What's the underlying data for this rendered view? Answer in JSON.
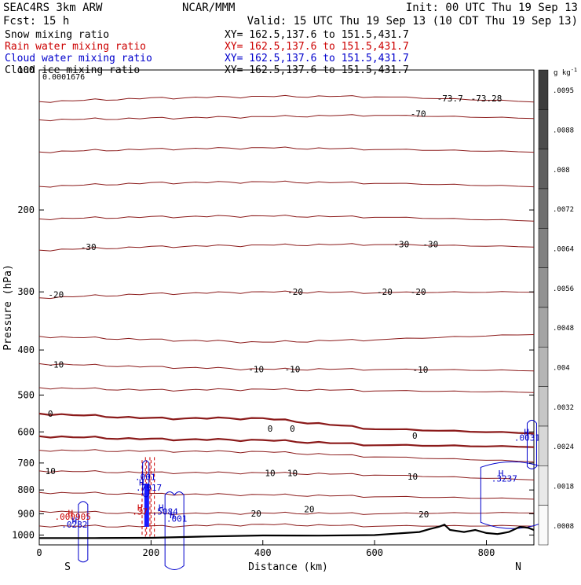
{
  "header": {
    "model": "SEAC4RS  3km ARW",
    "org": "NCAR/MMM",
    "init": "Init: 00 UTC Thu 19 Sep 13",
    "fcst": "Fcst:   15 h",
    "valid": "Valid: 15 UTC Thu 19 Sep 13 (10 CDT Thu 19 Sep 13)",
    "fields": [
      {
        "label": "Snow mixing ratio",
        "xy": "XY= 162.5,137.6 to 151.5,431.7",
        "color": "#000000"
      },
      {
        "label": "Rain water mixing ratio",
        "xy": "XY= 162.5,137.6 to 151.5,431.7",
        "color": "#cc0000"
      },
      {
        "label": "Cloud water mixing ratio",
        "xy": "XY= 162.5,137.6 to 151.5,431.7",
        "color": "#0000cc"
      },
      {
        "label": "Cloud ice mixing ratio",
        "xy": "XY= 162.5,137.6 to 151.5,431.7",
        "color": "#000000"
      }
    ],
    "snow_max_value": "0.0001676"
  },
  "colorbar": {
    "unit": "g kg",
    "unit_exp": "-1",
    "labels": [
      ".0095",
      ".0088",
      ".008",
      ".0072",
      ".0064",
      ".0056",
      ".0048",
      ".004",
      ".0032",
      ".0024",
      ".0018",
      ".0008"
    ]
  },
  "chart_data": {
    "type": "cross-section",
    "xlabel": "Distance (km)",
    "ylabel": "Pressure (hPa)",
    "xlim": [
      0,
      885
    ],
    "ylim": [
      1050,
      100
    ],
    "y_log": true,
    "x_ticks": [
      0,
      200,
      400,
      600,
      800
    ],
    "y_ticks": [
      100,
      200,
      300,
      400,
      500,
      600,
      700,
      800,
      900,
      1000
    ],
    "x_end_labels": {
      "left": "S",
      "right": "N"
    },
    "temperature_contours": [
      {
        "value": -74,
        "points": [
          [
            0,
            117
          ],
          [
            200,
            115
          ],
          [
            400,
            114
          ],
          [
            600,
            114
          ],
          [
            885,
            117
          ]
        ]
      },
      {
        "value": -70,
        "points": [
          [
            0,
            128
          ],
          [
            200,
            127
          ],
          [
            400,
            126
          ],
          [
            600,
            125
          ],
          [
            885,
            127
          ]
        ]
      },
      {
        "value": -60,
        "points": [
          [
            0,
            150
          ],
          [
            200,
            148
          ],
          [
            400,
            147
          ],
          [
            600,
            148
          ],
          [
            885,
            150
          ]
        ]
      },
      {
        "value": -50,
        "points": [
          [
            0,
            178
          ],
          [
            200,
            175
          ],
          [
            400,
            174
          ],
          [
            600,
            175
          ],
          [
            885,
            178
          ]
        ]
      },
      {
        "value": -40,
        "points": [
          [
            0,
            209
          ],
          [
            200,
            207
          ],
          [
            400,
            206
          ],
          [
            600,
            207
          ],
          [
            885,
            211
          ]
        ]
      },
      {
        "value": -30,
        "points": [
          [
            0,
            244
          ],
          [
            200,
            240
          ],
          [
            400,
            238
          ],
          [
            600,
            237
          ],
          [
            885,
            240
          ]
        ]
      },
      {
        "value": -20,
        "points": [
          [
            0,
            309
          ],
          [
            200,
            303
          ],
          [
            400,
            300
          ],
          [
            600,
            301
          ],
          [
            885,
            300
          ]
        ]
      },
      {
        "value": -10,
        "points": [
          [
            0,
            374
          ],
          [
            200,
            380
          ],
          [
            400,
            385
          ],
          [
            600,
            380
          ],
          [
            885,
            370
          ]
        ]
      },
      {
        "value": -10,
        "points": [
          [
            0,
            428
          ],
          [
            200,
            435
          ],
          [
            400,
            440
          ],
          [
            600,
            440
          ],
          [
            885,
            443
          ]
        ]
      },
      {
        "value": -10,
        "points": [
          [
            0,
            482
          ],
          [
            200,
            488
          ],
          [
            400,
            486
          ],
          [
            600,
            489
          ],
          [
            885,
            493
          ]
        ]
      },
      {
        "value": 0,
        "points": [
          [
            0,
            548
          ],
          [
            200,
            561
          ],
          [
            400,
            561
          ],
          [
            600,
            591
          ],
          [
            885,
            604
          ]
        ]
      },
      {
        "value": 0,
        "points": [
          [
            0,
            613
          ],
          [
            200,
            622
          ],
          [
            400,
            625
          ],
          [
            600,
            640
          ],
          [
            885,
            646
          ]
        ]
      },
      {
        "value": 10,
        "points": [
          [
            0,
            657
          ],
          [
            200,
            660
          ],
          [
            400,
            662
          ],
          [
            600,
            678
          ],
          [
            885,
            695
          ]
        ]
      },
      {
        "value": 10,
        "points": [
          [
            0,
            728
          ],
          [
            200,
            734
          ],
          [
            400,
            735
          ],
          [
            600,
            742
          ],
          [
            885,
            760
          ]
        ]
      },
      {
        "value": 20,
        "points": [
          [
            0,
            810
          ],
          [
            200,
            816
          ],
          [
            400,
            819
          ],
          [
            600,
            826
          ],
          [
            885,
            836
          ]
        ]
      },
      {
        "value": 20,
        "points": [
          [
            0,
            888
          ],
          [
            200,
            899
          ],
          [
            400,
            897
          ],
          [
            600,
            899
          ],
          [
            885,
            895
          ]
        ]
      },
      {
        "value": 30,
        "points": [
          [
            0,
            956
          ],
          [
            200,
            958
          ],
          [
            400,
            949
          ],
          [
            600,
            956
          ],
          [
            885,
            955
          ]
        ]
      }
    ],
    "contour_labels": [
      {
        "text": "-73.7",
        "x": 735,
        "y": 115
      },
      {
        "text": "-73.28",
        "x": 800,
        "y": 115
      },
      {
        "text": "-70",
        "x": 678,
        "y": 124
      },
      {
        "text": "-30",
        "x": 88,
        "y": 240
      },
      {
        "text": "-30",
        "x": 648,
        "y": 237
      },
      {
        "text": "-30",
        "x": 700,
        "y": 237
      },
      {
        "text": "-20",
        "x": 30,
        "y": 304
      },
      {
        "text": "-20",
        "x": 458,
        "y": 300
      },
      {
        "text": "-20",
        "x": 618,
        "y": 300
      },
      {
        "text": "-20",
        "x": 678,
        "y": 300
      },
      {
        "text": "-10",
        "x": 30,
        "y": 430
      },
      {
        "text": "-10",
        "x": 388,
        "y": 440
      },
      {
        "text": "-10",
        "x": 453,
        "y": 440
      },
      {
        "text": "-10",
        "x": 682,
        "y": 441
      },
      {
        "text": "0",
        "x": 20,
        "y": 548
      },
      {
        "text": "0",
        "x": 413,
        "y": 590
      },
      {
        "text": "0",
        "x": 453,
        "y": 590
      },
      {
        "text": "0",
        "x": 672,
        "y": 611
      },
      {
        "text": "10",
        "x": 20,
        "y": 728
      },
      {
        "text": "10",
        "x": 413,
        "y": 735
      },
      {
        "text": "10",
        "x": 453,
        "y": 735
      },
      {
        "text": "10",
        "x": 668,
        "y": 749
      },
      {
        "text": "20",
        "x": 388,
        "y": 898
      },
      {
        "text": "20",
        "x": 483,
        "y": 880
      },
      {
        "text": "20",
        "x": 688,
        "y": 902
      }
    ],
    "terrain": [
      [
        0,
        1015
      ],
      [
        100,
        1015
      ],
      [
        200,
        1014
      ],
      [
        300,
        1007
      ],
      [
        400,
        1002
      ],
      [
        500,
        1003
      ],
      [
        600,
        1000
      ],
      [
        680,
        985
      ],
      [
        700,
        970
      ],
      [
        715,
        960
      ],
      [
        725,
        950
      ],
      [
        735,
        975
      ],
      [
        760,
        985
      ],
      [
        780,
        975
      ],
      [
        800,
        990
      ],
      [
        820,
        995
      ],
      [
        840,
        985
      ],
      [
        860,
        960
      ],
      [
        875,
        965
      ],
      [
        885,
        975
      ]
    ],
    "annotations": [
      {
        "text": ".001",
        "x": 190,
        "y": 750,
        "color": "#0000cc"
      },
      {
        "text": "H",
        "x": 183,
        "y": 770,
        "color": "#0000cc"
      },
      {
        "text": ".7917",
        "x": 196,
        "y": 790,
        "color": "#0000cc"
      },
      {
        "text": "H",
        "x": 180,
        "y": 872,
        "color": "#cc0000"
      },
      {
        "text": ".37",
        "x": 180,
        "y": 890,
        "color": "#cc0000"
      },
      {
        "text": "H",
        "x": 218,
        "y": 872,
        "color": "#0000cc"
      },
      {
        "text": ".5084",
        "x": 225,
        "y": 890,
        "color": "#0000cc"
      },
      {
        "text": "H",
        "x": 238,
        "y": 905,
        "color": "#0000cc"
      },
      {
        "text": ".001",
        "x": 246,
        "y": 922,
        "color": "#0000cc"
      },
      {
        "text": "H",
        "x": 56,
        "y": 897,
        "color": "#cc0000"
      },
      {
        "text": ".000905",
        "x": 60,
        "y": 913,
        "color": "#cc0000"
      },
      {
        "text": "H",
        "x": 63,
        "y": 930,
        "color": "#0000cc"
      },
      {
        "text": ".0282",
        "x": 63,
        "y": 948,
        "color": "#0000cc"
      },
      {
        "text": "H",
        "x": 826,
        "y": 737,
        "color": "#0000cc"
      },
      {
        "text": ".3237",
        "x": 832,
        "y": 755,
        "color": "#0000cc"
      },
      {
        "text": "H",
        "x": 872,
        "y": 600,
        "color": "#0000cc"
      },
      {
        "text": ".0031",
        "x": 873,
        "y": 617,
        "color": "#0000cc"
      }
    ]
  }
}
